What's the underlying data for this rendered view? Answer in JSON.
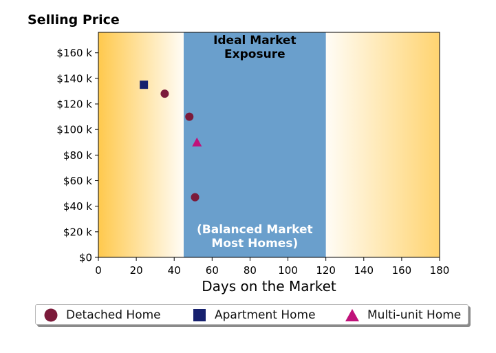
{
  "chart_data": {
    "type": "scatter",
    "title": "Selling Price",
    "xlabel": "Days on the Market",
    "ylabel": "",
    "xlim": [
      0,
      180
    ],
    "ylim": [
      0,
      176000
    ],
    "x_ticks": [
      0,
      20,
      40,
      60,
      80,
      100,
      120,
      140,
      160,
      180
    ],
    "x_tick_labels": [
      "0",
      "20",
      "40",
      "60",
      "80",
      "100",
      "120",
      "140",
      "160",
      "180"
    ],
    "y_ticks": [
      0,
      20000,
      40000,
      60000,
      80000,
      100000,
      120000,
      140000,
      160000
    ],
    "y_tick_labels": [
      "$0",
      "$20 k",
      "$40 k",
      "$60 k",
      "$80 k",
      "$100 k",
      "$120 k",
      "$140 k",
      "$160 k"
    ],
    "ideal_band": {
      "x_range": [
        45,
        120
      ],
      "color": "#6a9fcc",
      "label_top": [
        "Ideal Market",
        "Exposure"
      ],
      "label_bottom": [
        "(Balanced Market",
        "Most Homes)"
      ]
    },
    "background_gradient_color": "#ffc94d",
    "legend_position": "bottom",
    "series": [
      {
        "name": "Detached Home",
        "marker": "circle",
        "color": "#7b1a3a",
        "points": [
          {
            "x": 35,
            "y": 128000
          },
          {
            "x": 48,
            "y": 110000
          },
          {
            "x": 51,
            "y": 47000
          }
        ]
      },
      {
        "name": "Apartment Home",
        "marker": "square",
        "color": "#16206e",
        "points": [
          {
            "x": 24,
            "y": 135000
          }
        ]
      },
      {
        "name": "Multi-unit Home",
        "marker": "triangle",
        "color": "#c0127a",
        "points": [
          {
            "x": 52,
            "y": 90000
          }
        ]
      }
    ]
  }
}
